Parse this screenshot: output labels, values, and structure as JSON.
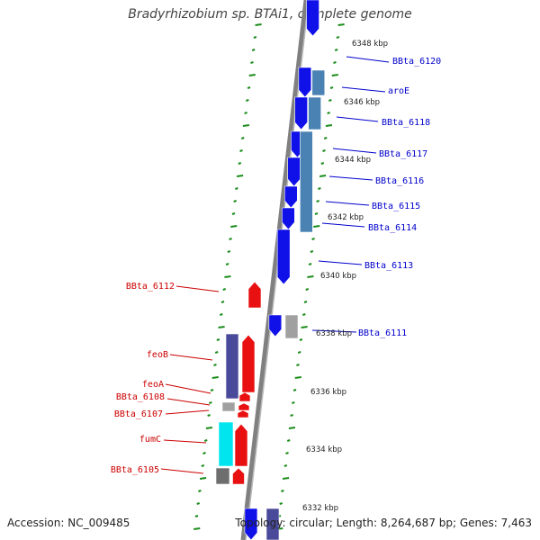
{
  "title": "Bradyrhizobium sp. BTAi1, complete genome",
  "footer": {
    "accession": "Accession: NC_009485",
    "summary": "Topology: circular; Length: 8,264,687 bp; Genes: 7,463"
  },
  "colors": {
    "forward_gene": "#1010e8",
    "forward_pair": "#4a82b4",
    "reverse_gene": "#e81010",
    "operon_purple": "#4a4a9a",
    "cyan_gene": "#00e5ee",
    "grey_gene": "#a0a0a0",
    "dark_grey_gene": "#6e6e6e",
    "backbone": "#808080",
    "tick": "#1a8c1a",
    "forward_label": "#0000cc",
    "reverse_label": "#cc0000"
  },
  "scale_labels": [
    "6348 kbp",
    "6346 kbp",
    "6344 kbp",
    "6342 kbp",
    "6340 kbp",
    "6338 kbp",
    "6336 kbp",
    "6334 kbp",
    "6332 kbp"
  ],
  "genes_forward": [
    "BBta_6120",
    "aroE",
    "BBta_6118",
    "BBta_6117",
    "BBta_6116",
    "BBta_6115",
    "BBta_6114",
    "BBta_6113",
    "BBta_6111"
  ],
  "genes_reverse": [
    "BBta_6112",
    "feoB",
    "feoA",
    "BBta_6108",
    "BBta_6107",
    "fumC",
    "BBta_6105"
  ]
}
